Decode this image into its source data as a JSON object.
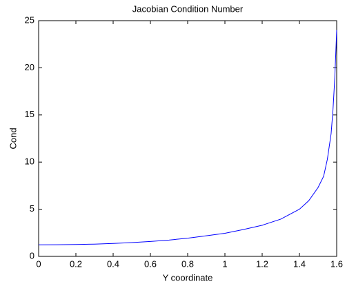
{
  "chart_data": {
    "type": "line",
    "title": "Jacobian Condition Number",
    "x_label": "Y coordinate",
    "y_label": "Cond",
    "x": [
      0,
      0.1,
      0.2,
      0.3,
      0.4,
      0.5,
      0.6,
      0.7,
      0.8,
      0.9,
      1.0,
      1.1,
      1.2,
      1.3,
      1.4,
      1.45,
      1.5,
      1.53,
      1.55,
      1.57,
      1.58,
      1.59,
      1.6
    ],
    "series": [
      {
        "name": "Cond",
        "color": "#0000ff",
        "values": [
          1.22,
          1.23,
          1.26,
          1.3,
          1.37,
          1.46,
          1.58,
          1.73,
          1.93,
          2.18,
          2.45,
          2.85,
          3.3,
          3.95,
          5.0,
          5.9,
          7.3,
          8.5,
          10.3,
          13,
          15.5,
          19,
          24
        ]
      }
    ],
    "xlim": [
      0,
      1.6
    ],
    "xticks": [
      0,
      0.2,
      0.4,
      0.6,
      0.8,
      1,
      1.2,
      1.4,
      1.6
    ],
    "ylim": [
      0,
      25
    ],
    "yticks": [
      0,
      5,
      10,
      15,
      20,
      25
    ]
  }
}
